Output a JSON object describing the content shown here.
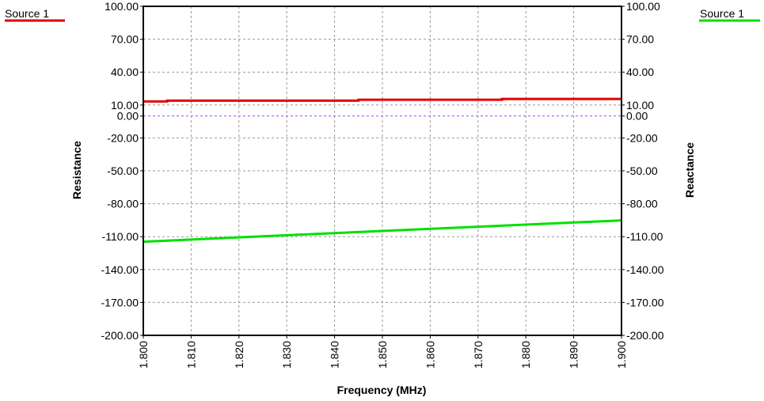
{
  "chart_data": {
    "type": "line",
    "xlabel": "Frequency (MHz)",
    "ylabel_left": "Resistance",
    "ylabel_right": "Reactance",
    "xlim": [
      1.8,
      1.9
    ],
    "ylim": [
      -200,
      100
    ],
    "x_ticks": [
      "1.800",
      "1.810",
      "1.820",
      "1.830",
      "1.840",
      "1.850",
      "1.860",
      "1.870",
      "1.880",
      "1.890",
      "1.900"
    ],
    "y_ticks": [
      "100.00",
      "70.00",
      "40.00",
      "10.00",
      "0.00",
      "-20.00",
      "-50.00",
      "-80.00",
      "-110.00",
      "-140.00",
      "-170.00",
      "-200.00"
    ],
    "grid": true,
    "zero_line": 0,
    "series": [
      {
        "name": "Source 1",
        "axis": "left",
        "color": "#e00000",
        "x": [
          1.8,
          1.805,
          1.805,
          1.845,
          1.845,
          1.875,
          1.875,
          1.9
        ],
        "y": [
          13.3,
          13.3,
          14.0,
          14.0,
          14.8,
          14.8,
          15.5,
          15.5
        ]
      },
      {
        "name": "Source 1",
        "axis": "right",
        "color": "#00e000",
        "x": [
          1.8,
          1.85,
          1.9
        ],
        "y": [
          -114.6,
          -104.8,
          -95.2
        ]
      }
    ]
  },
  "legend": {
    "left": {
      "label": "Source 1",
      "color": "#e00000"
    },
    "right": {
      "label": "Source 1",
      "color": "#00e000"
    }
  }
}
